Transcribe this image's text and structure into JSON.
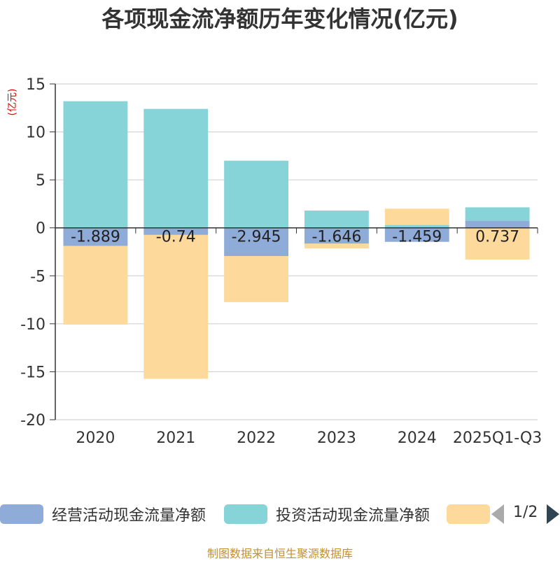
{
  "chart_data": {
    "type": "bar",
    "stacked": true,
    "title": "各项现金流净额历年变化情况(亿元)",
    "ylabel": "(亿元)",
    "ylim": [
      -20,
      15
    ],
    "yticks": [
      15,
      10,
      5,
      0,
      -5,
      -10,
      -15,
      -20
    ],
    "categories": [
      "2020",
      "2021",
      "2022",
      "2023",
      "2024",
      "2025Q1-Q3"
    ],
    "series": [
      {
        "name": "经营活动现金流量净额",
        "color": "#8fabd8",
        "values": [
          -1.889,
          -0.74,
          -2.945,
          -1.646,
          -1.459,
          0.737
        ],
        "labels": [
          "-1.889",
          "-0.74",
          "-2.945",
          "-1.646",
          "-1.459",
          "0.737"
        ]
      },
      {
        "name": "投资活动现金流量净额",
        "color": "#86d4d8",
        "values": [
          13.2,
          12.4,
          7.0,
          1.8,
          0.3,
          1.4
        ]
      },
      {
        "name": "",
        "color": "#fdd99b",
        "values": [
          -8.2,
          -15.0,
          -4.8,
          -0.5,
          1.7,
          -3.3
        ]
      }
    ]
  },
  "legend": {
    "items": [
      {
        "label": "经营活动现金流量净额",
        "color": "#8fabd8"
      },
      {
        "label": "投资活动现金流量净额",
        "color": "#86d4d8"
      },
      {
        "label": "",
        "color": "#fdd99b"
      }
    ],
    "page_indicator": "1/2"
  },
  "footer": "制图数据来自恒生聚源数据库"
}
